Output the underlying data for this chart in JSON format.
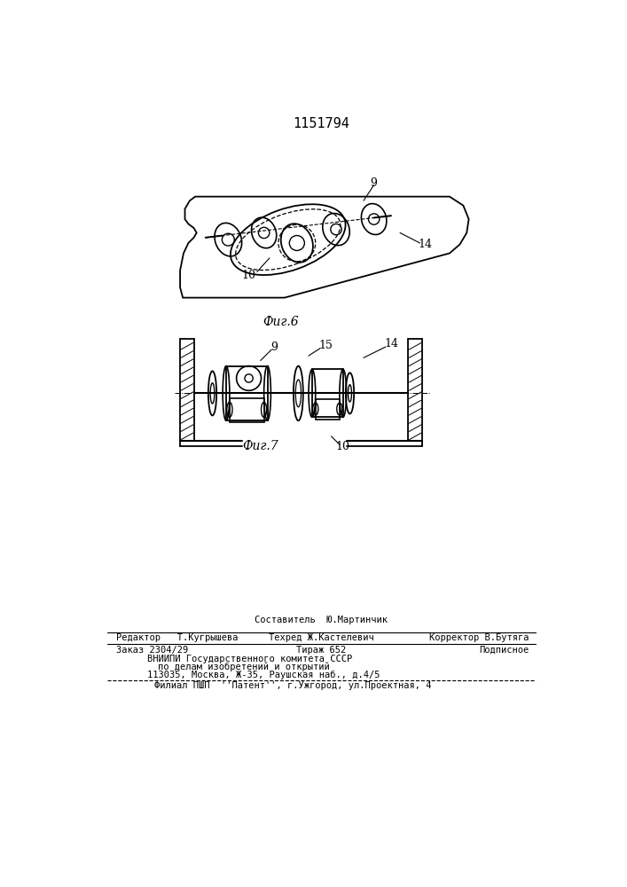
{
  "patent_number": "1151794",
  "bg_color": "#ffffff",
  "line_color": "#000000",
  "fig6_label": "Фиг.6",
  "fig7_label": "Фиг.7",
  "label_9": "9",
  "label_10": "10",
  "label_14": "14",
  "label_15": "15",
  "footer_composer": "Составитель  Ю.Мартинчик",
  "footer_editor": "Редактор   Т.Кугрышева",
  "footer_tekhred": "Техред Ж.Кастелевич",
  "footer_corrector": "Корректор В.Бутяга",
  "footer_zakaz": "Заказ 2304/29",
  "footer_tirazh": "Тираж 652",
  "footer_podpisnoe": "Подписное",
  "footer_vniiipi": "ВНИИПИ Государственного комитета СССР",
  "footer_dela": "по делам изобретений и открытий",
  "footer_address": "113035, Москва, Ж-35, Раушская наб., д.4/5",
  "footer_filial": "Филиал ПШП  ''Патент'', г.Ужгород, ул.Проектная, 4"
}
